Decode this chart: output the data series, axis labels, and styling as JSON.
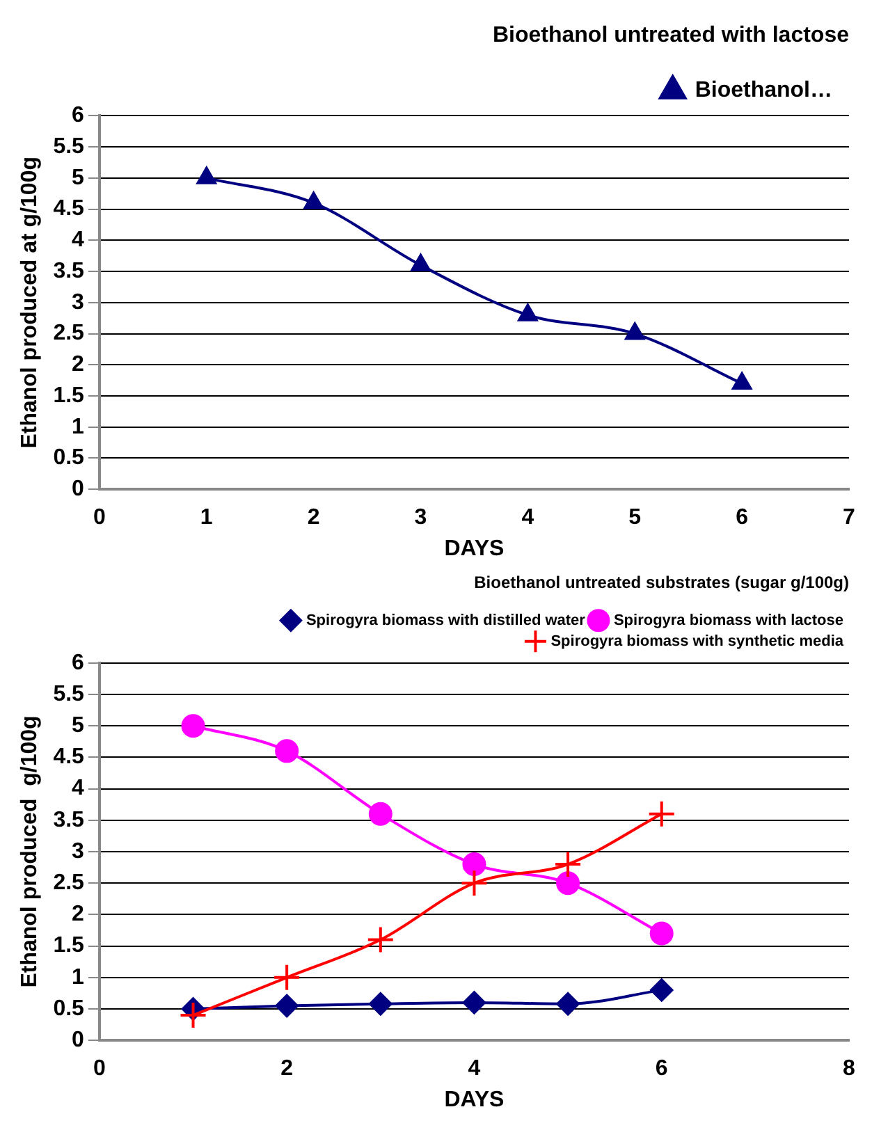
{
  "chart_data": [
    {
      "type": "line",
      "title": "Bioethanol untreated with lactose",
      "xlabel": "DAYS",
      "ylabel": "Ethanol produced at g/100g",
      "x": [
        1,
        2,
        3,
        4,
        5,
        6
      ],
      "series": [
        {
          "name": "Bioethanol…",
          "color": "#000080",
          "marker": "triangle",
          "values": [
            5,
            4.6,
            3.6,
            2.8,
            2.5,
            1.7
          ]
        }
      ],
      "xlim": [
        0,
        7
      ],
      "xticks": [
        0,
        1,
        2,
        3,
        4,
        5,
        6,
        7
      ],
      "ylim": [
        0,
        6
      ],
      "yticks": [
        0,
        0.5,
        1,
        1.5,
        2,
        2.5,
        3,
        3.5,
        4,
        4.5,
        5,
        5.5,
        6
      ],
      "grid": "y",
      "legend": "top right"
    },
    {
      "type": "line",
      "title": "Bioethanol untreated substrates (sugar g/100g)",
      "xlabel": "DAYS",
      "ylabel": "Ethanol produced  g/100g",
      "x": [
        1,
        2,
        3,
        4,
        5,
        6
      ],
      "series": [
        {
          "name": "Spirogyra biomass with distilled water",
          "color": "#000080",
          "marker": "diamond",
          "values": [
            0.5,
            0.55,
            0.58,
            0.6,
            0.58,
            0.8
          ]
        },
        {
          "name": "Spirogyra biomass with lactose",
          "color": "#ff00ff",
          "marker": "circle",
          "values": [
            5,
            4.6,
            3.6,
            2.8,
            2.5,
            1.7
          ]
        },
        {
          "name": "Spirogyra biomass with synthetic media",
          "color": "#ff0000",
          "marker": "cross",
          "values": [
            0.4,
            1.0,
            1.6,
            2.5,
            2.8,
            3.6
          ]
        }
      ],
      "xlim": [
        0,
        8
      ],
      "xticks": [
        0,
        2,
        4,
        6,
        8
      ],
      "ylim": [
        0,
        6
      ],
      "yticks": [
        0,
        0.5,
        1,
        1.5,
        2,
        2.5,
        3,
        3.5,
        4,
        4.5,
        5,
        5.5,
        6
      ],
      "grid": "y",
      "legend": "top right"
    }
  ]
}
